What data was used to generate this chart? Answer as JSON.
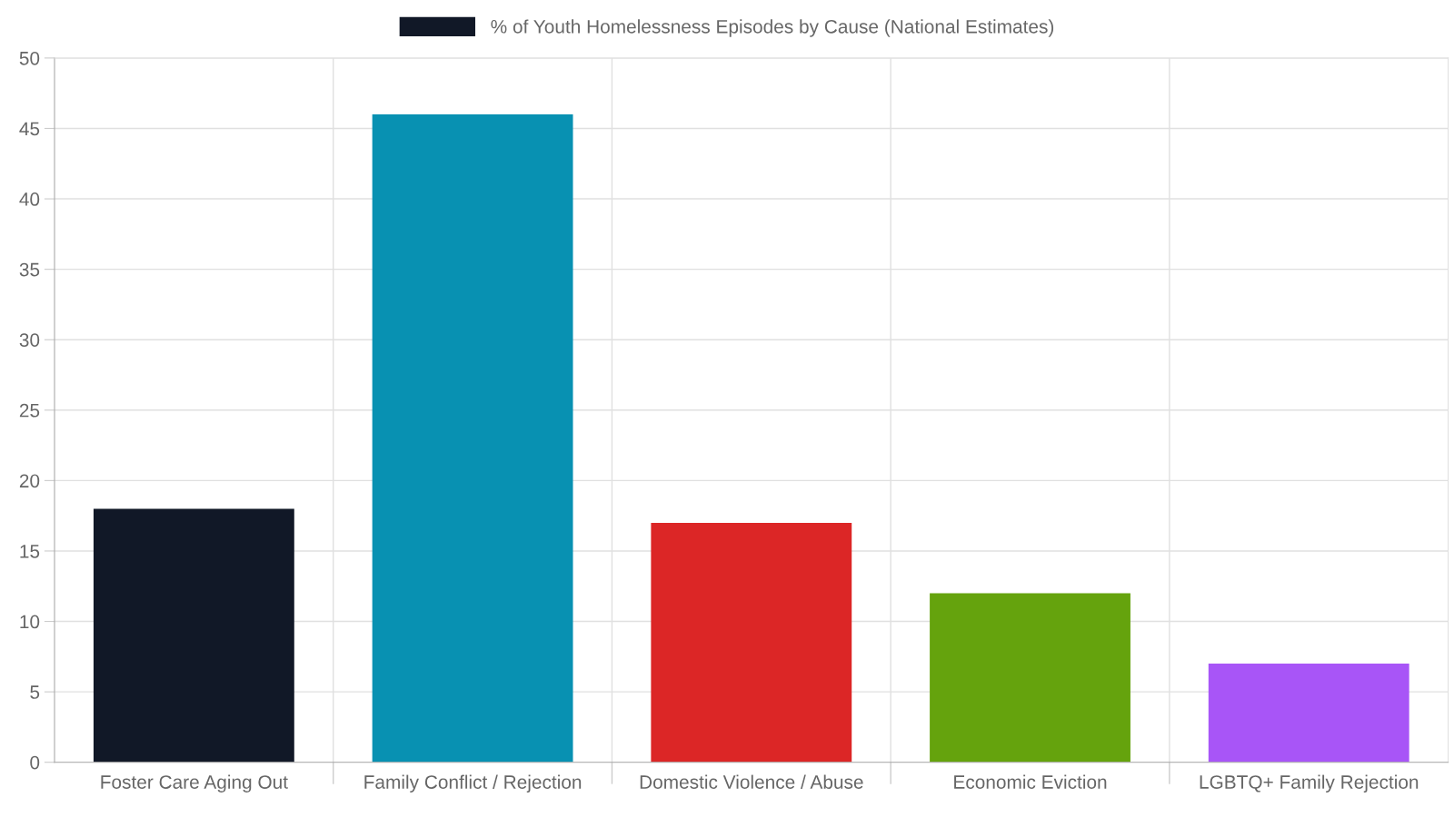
{
  "chart_data": {
    "type": "bar",
    "categories": [
      "Foster Care Aging Out",
      "Family Conflict / Rejection",
      "Domestic Violence / Abuse",
      "Economic Eviction",
      "LGBTQ+ Family Rejection"
    ],
    "series": [
      {
        "name": "% of Youth Homelessness Episodes by Cause (National Estimates)",
        "colors": [
          "#111827",
          "#0891b2",
          "#dc2626",
          "#65a30d",
          "#a855f7"
        ],
        "values": [
          18,
          46,
          17,
          12,
          7
        ]
      }
    ],
    "ylim": [
      0,
      50
    ],
    "yticks": [
      0,
      5,
      10,
      15,
      20,
      25,
      30,
      35,
      40,
      45,
      50
    ],
    "grid": true,
    "legend": "top"
  }
}
